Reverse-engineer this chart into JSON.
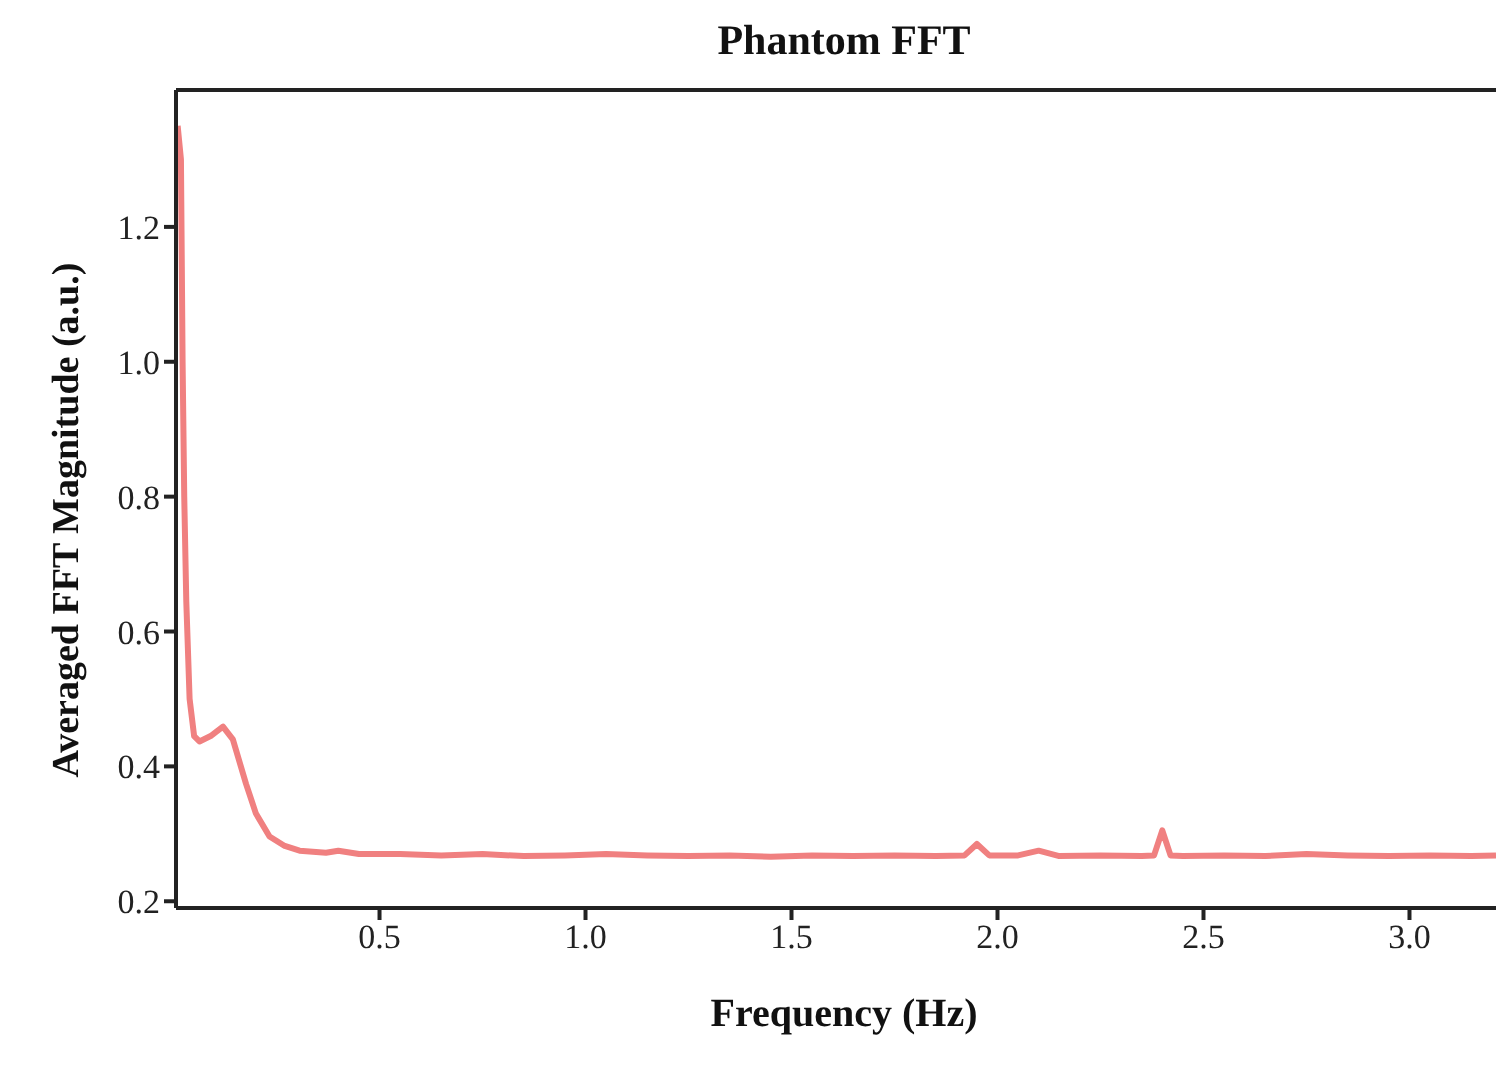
{
  "chart_data": {
    "type": "line",
    "title": "Phantom FFT",
    "xlabel": "Frequency (Hz)",
    "ylabel": "Averaged FFT Magnitude (a.u.)",
    "xlim": [
      0.006,
      3.21
    ],
    "ylim": [
      0.19,
      1.403
    ],
    "xticks": [
      0.5,
      {
        "value": 1,
        "label": "1.0"
      },
      1.5,
      {
        "value": 2,
        "label": "2.0"
      },
      2.5,
      {
        "value": 3,
        "label": "3.0"
      }
    ],
    "yticks": [
      0.2,
      0.4,
      0.6,
      0.8,
      {
        "value": 1,
        "label": "1.0"
      },
      1.2
    ],
    "grid": false,
    "legend": false,
    "marker": "none",
    "line_style": "solid",
    "x": [
      0.01,
      0.018,
      0.022,
      0.026,
      0.031,
      0.039,
      0.05,
      0.063,
      0.09,
      0.12,
      0.144,
      0.176,
      0.2,
      0.233,
      0.27,
      0.306,
      0.37,
      0.4,
      0.45,
      0.55,
      0.65,
      0.75,
      0.85,
      0.95,
      1.05,
      1.15,
      1.25,
      1.35,
      1.45,
      1.55,
      1.65,
      1.75,
      1.85,
      1.92,
      1.95,
      1.98,
      2.05,
      2.1,
      2.15,
      2.25,
      2.35,
      2.38,
      2.4,
      2.42,
      2.45,
      2.55,
      2.65,
      2.75,
      2.85,
      2.95,
      3.05,
      3.15,
      3.21
    ],
    "series": [
      {
        "color": "#f08080",
        "values": [
          1.35,
          1.3,
          1.0,
          0.8,
          0.644,
          0.5,
          0.445,
          0.437,
          0.445,
          0.459,
          0.44,
          0.374,
          0.33,
          0.296,
          0.282,
          0.275,
          0.272,
          0.275,
          0.27,
          0.27,
          0.268,
          0.27,
          0.267,
          0.268,
          0.27,
          0.268,
          0.267,
          0.268,
          0.266,
          0.268,
          0.267,
          0.268,
          0.267,
          0.268,
          0.285,
          0.268,
          0.268,
          0.275,
          0.267,
          0.268,
          0.267,
          0.268,
          0.305,
          0.268,
          0.267,
          0.268,
          0.267,
          0.27,
          0.268,
          0.267,
          0.268,
          0.267,
          0.268
        ]
      }
    ]
  }
}
